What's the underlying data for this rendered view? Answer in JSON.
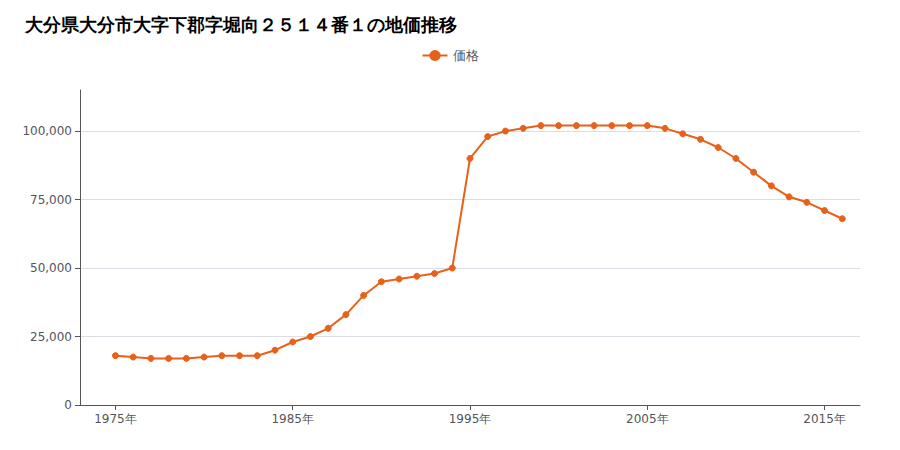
{
  "chart_data": {
    "type": "line",
    "title": "大分県大分市大字下郡字堀向２５１４番１の地価推移",
    "x": [
      1975,
      1976,
      1977,
      1978,
      1979,
      1980,
      1981,
      1982,
      1983,
      1984,
      1985,
      1986,
      1987,
      1988,
      1989,
      1990,
      1991,
      1992,
      1993,
      1994,
      1995,
      1996,
      1997,
      1998,
      1999,
      2000,
      2001,
      2002,
      2003,
      2004,
      2005,
      2006,
      2007,
      2008,
      2009,
      2010,
      2011,
      2012,
      2013,
      2014,
      2015,
      2016
    ],
    "series": [
      {
        "name": "価格",
        "color": "#E8611A",
        "marker": "circle",
        "line_style": "solid",
        "values": [
          18000,
          17500,
          17000,
          17000,
          17000,
          17500,
          18000,
          18000,
          18000,
          20000,
          23000,
          25000,
          28000,
          33000,
          40000,
          45000,
          46000,
          47000,
          48000,
          50000,
          90000,
          98000,
          100000,
          101000,
          102000,
          102000,
          102000,
          102000,
          102000,
          102000,
          102000,
          101000,
          99000,
          97000,
          94000,
          90000,
          85000,
          80000,
          76000,
          74000,
          71000,
          68000
        ]
      }
    ],
    "xlim": [
      1973,
      2017
    ],
    "xticks": [
      {
        "value": 1975,
        "label": "1975年"
      },
      {
        "value": 1985,
        "label": "1985年"
      },
      {
        "value": 1995,
        "label": "1995年"
      },
      {
        "value": 2005,
        "label": "2005年"
      },
      {
        "value": 2015,
        "label": "2015年"
      }
    ],
    "ylim": [
      0,
      115000
    ],
    "yticks": [
      0,
      {
        "value": 25000,
        "label": "25,000"
      },
      {
        "value": 50000,
        "label": "50,000"
      },
      {
        "value": 75000,
        "label": "75,000"
      },
      {
        "value": 100000,
        "label": "100,000"
      }
    ],
    "grid": true,
    "legend": "top"
  }
}
